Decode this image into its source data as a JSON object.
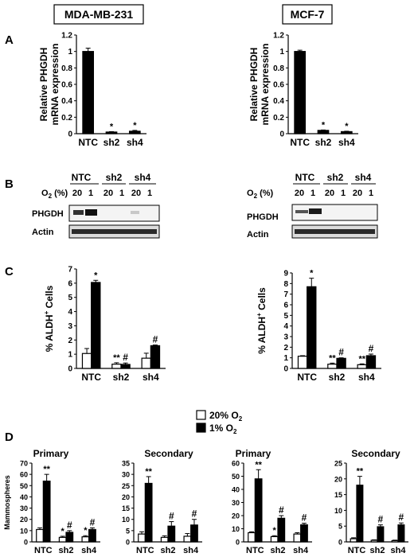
{
  "figure": {
    "cell_lines": [
      "MDA-MB-231",
      "MCF-7"
    ],
    "panel_letters": [
      "A",
      "B",
      "C",
      "D"
    ],
    "sub_o2": "2",
    "sup_plus": "+"
  },
  "panel_b": {
    "blots": [
      {
        "lane_groups": [
          "NTC",
          "sh2",
          "sh4"
        ],
        "o2_label": "O",
        "o2_suffix": " (%)",
        "o2_levels": [
          "20",
          "1",
          "20",
          "1",
          "20",
          "1"
        ],
        "bands": [
          "PHGDH",
          "Actin"
        ]
      },
      {
        "lane_groups": [
          "NTC",
          "sh2",
          "sh4"
        ],
        "o2_label": "O",
        "o2_suffix": " (%)",
        "o2_levels": [
          "20",
          "1",
          "20",
          "1",
          "20",
          "1"
        ],
        "bands": [
          "PHGDH",
          "Actin"
        ]
      }
    ]
  },
  "legend": {
    "items": [
      {
        "label": "20% O",
        "sub": "2",
        "fill": "#ffffff"
      },
      {
        "label": "1% O",
        "sub": "2",
        "fill": "#000000"
      }
    ]
  },
  "colors": {
    "normoxia": "#ffffff",
    "hypoxia": "#000000",
    "ink": "#000000"
  },
  "chart_data": [
    {
      "id": "A-left",
      "type": "bar",
      "ylabel": [
        "Relative PHGDH",
        "mRNA expression"
      ],
      "categories": [
        "NTC",
        "sh2",
        "sh4"
      ],
      "yticks": [
        "0",
        "0.2",
        "0.4",
        "0.6",
        "0.8",
        "1",
        "1.2"
      ],
      "ylim": [
        0,
        1.2
      ],
      "series": [
        {
          "fill": "#000000",
          "values": [
            1.0,
            0.02,
            0.03
          ],
          "err": [
            0.04,
            0.005,
            0.01
          ],
          "marks": [
            "",
            "*",
            "*"
          ]
        }
      ]
    },
    {
      "id": "A-right",
      "type": "bar",
      "ylabel": [
        "Relative PHGDH",
        "mRNA expression"
      ],
      "categories": [
        "NTC",
        "sh2",
        "sh4"
      ],
      "yticks": [
        "0",
        "0.2",
        "0.4",
        "0.6",
        "0.8",
        "1",
        "1.2"
      ],
      "ylim": [
        0,
        1.2
      ],
      "series": [
        {
          "fill": "#000000",
          "values": [
            1.0,
            0.04,
            0.025
          ],
          "err": [
            0.015,
            0.005,
            0.005
          ],
          "marks": [
            "",
            "*",
            "*"
          ]
        }
      ]
    },
    {
      "id": "C-left",
      "type": "bar",
      "ylabel": [
        "% ALDH"
      ],
      "ylabel_sup": "+",
      "ylabel_tail": " Cells",
      "categories": [
        "NTC",
        "sh2",
        "sh4"
      ],
      "yticks": [
        "0",
        "1",
        "2",
        "3",
        "4",
        "5",
        "6",
        "7"
      ],
      "ylim": [
        0,
        7
      ],
      "series": [
        {
          "name": "20% O2",
          "fill": "#ffffff",
          "values": [
            1.05,
            0.3,
            0.72
          ],
          "err": [
            0.35,
            0.1,
            0.35
          ],
          "marks": [
            "",
            "**",
            ""
          ]
        },
        {
          "name": "1% O2",
          "fill": "#000000",
          "values": [
            6.05,
            0.28,
            1.6
          ],
          "err": [
            0.15,
            0.1,
            0.05
          ],
          "marks": [
            "*",
            "#",
            "#"
          ]
        }
      ]
    },
    {
      "id": "C-right",
      "type": "bar",
      "ylabel": [
        "% ALDH"
      ],
      "ylabel_sup": "+",
      "ylabel_tail": " Cells",
      "categories": [
        "NTC",
        "sh2",
        "sh4"
      ],
      "yticks": [
        "0",
        "1",
        "2",
        "3",
        "4",
        "5",
        "6",
        "7",
        "8",
        "9"
      ],
      "ylim": [
        0,
        9
      ],
      "series": [
        {
          "name": "20% O2",
          "fill": "#ffffff",
          "values": [
            1.15,
            0.4,
            0.35
          ],
          "err": [
            0.05,
            0.1,
            0.08
          ],
          "marks": [
            "",
            "**",
            "**"
          ]
        },
        {
          "name": "1% O2",
          "fill": "#000000",
          "values": [
            7.7,
            0.95,
            1.2
          ],
          "err": [
            0.8,
            0.05,
            0.15
          ],
          "marks": [
            "*",
            "#",
            "#"
          ]
        }
      ]
    },
    {
      "id": "D-1",
      "type": "bar",
      "title": "Primary",
      "ylabel": [
        "Mammospheres"
      ],
      "categories": [
        "NTC",
        "sh2",
        "sh4"
      ],
      "yticks": [
        "0",
        "10",
        "20",
        "30",
        "40",
        "50",
        "60",
        "70"
      ],
      "ylim": [
        0,
        70
      ],
      "series": [
        {
          "name": "20% O2",
          "fill": "#ffffff",
          "values": [
            11,
            4,
            4.5
          ],
          "err": [
            1.5,
            1,
            1
          ],
          "marks": [
            "",
            "*",
            "*"
          ]
        },
        {
          "name": "1% O2",
          "fill": "#000000",
          "values": [
            54,
            8.5,
            11
          ],
          "err": [
            6,
            1.5,
            1.5
          ],
          "marks": [
            "**",
            "#",
            "#"
          ]
        }
      ]
    },
    {
      "id": "D-2",
      "type": "bar",
      "title": "Secondary",
      "categories": [
        "NTC",
        "sh2",
        "sh4"
      ],
      "yticks": [
        "0",
        "5",
        "10",
        "15",
        "20",
        "25",
        "30",
        "35"
      ],
      "ylim": [
        0,
        35
      ],
      "series": [
        {
          "name": "20% O2",
          "fill": "#ffffff",
          "values": [
            3.5,
            2,
            2.5
          ],
          "err": [
            1,
            0.7,
            1.2
          ],
          "marks": [
            "",
            "",
            ""
          ]
        },
        {
          "name": "1% O2",
          "fill": "#000000",
          "values": [
            26,
            7,
            7.5
          ],
          "err": [
            3,
            2,
            2.5
          ],
          "marks": [
            "**",
            "#",
            "#"
          ]
        }
      ]
    },
    {
      "id": "D-3",
      "type": "bar",
      "title": "Primary",
      "categories": [
        "NTC",
        "sh2",
        "sh4"
      ],
      "yticks": [
        "0",
        "10",
        "20",
        "30",
        "40",
        "50",
        "60"
      ],
      "ylim": [
        0,
        60
      ],
      "series": [
        {
          "name": "20% O2",
          "fill": "#ffffff",
          "values": [
            7,
            4,
            6
          ],
          "err": [
            0.7,
            0.7,
            1
          ],
          "marks": [
            "",
            "*",
            ""
          ]
        },
        {
          "name": "1% O2",
          "fill": "#000000",
          "values": [
            48,
            18,
            13
          ],
          "err": [
            7,
            2,
            1.2
          ],
          "marks": [
            "**",
            "#",
            "#"
          ]
        }
      ]
    },
    {
      "id": "D-4",
      "type": "bar",
      "title": "Secondary",
      "categories": [
        "NTC",
        "sh2",
        "sh4"
      ],
      "yticks": [
        "0",
        "5",
        "10",
        "15",
        "20",
        "25"
      ],
      "ylim": [
        0,
        25
      ],
      "series": [
        {
          "name": "20% O2",
          "fill": "#ffffff",
          "values": [
            1,
            0.5,
            0.4
          ],
          "err": [
            0.3,
            0.15,
            0.15
          ],
          "marks": [
            "",
            "",
            ""
          ]
        },
        {
          "name": "1% O2",
          "fill": "#000000",
          "values": [
            18,
            4.8,
            5.4
          ],
          "err": [
            2.8,
            0.6,
            0.6
          ],
          "marks": [
            "**",
            "#",
            "#"
          ]
        }
      ]
    }
  ]
}
